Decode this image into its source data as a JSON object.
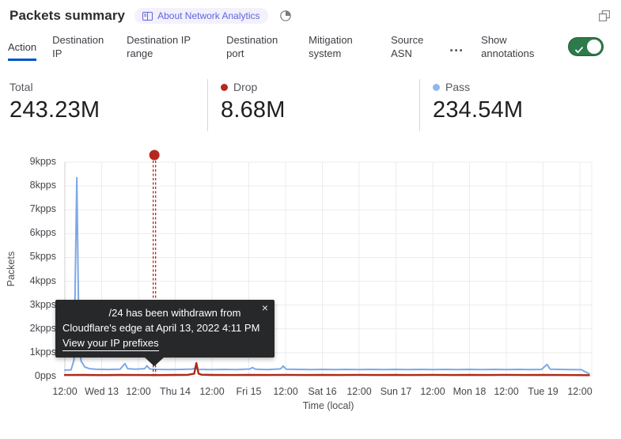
{
  "header": {
    "title": "Packets summary",
    "badge_label": "About Network Analytics"
  },
  "tabs": {
    "items": [
      {
        "label": "Action",
        "selected": true
      },
      {
        "label": "Destination IP",
        "selected": false
      },
      {
        "label": "Destination IP range",
        "selected": false
      },
      {
        "label": "Destination port",
        "selected": false
      },
      {
        "label": "Mitigation system",
        "selected": false
      },
      {
        "label": "Source ASN",
        "selected": false
      }
    ],
    "more_label": "...",
    "show_annotations_label": "Show annotations",
    "annotations_toggle_on": true,
    "selected_underline_color": "#0055cc",
    "toggle_color": "#2d7a4b"
  },
  "stats": {
    "items": [
      {
        "label": "Total",
        "value": "243.23M",
        "dot_color": ""
      },
      {
        "label": "Drop",
        "value": "8.68M",
        "dot_color": "#b5281c"
      },
      {
        "label": "Pass",
        "value": "234.54M",
        "dot_color": "#8fb9ed"
      }
    ]
  },
  "tooltip": {
    "line1": "/24 has been withdrawn from",
    "line2": "Cloudflare's edge at April 13, 2022 4:11 PM",
    "link_label": "View your IP prefixes",
    "close_label": "×"
  },
  "chart_data": {
    "type": "line",
    "title": "",
    "xlabel": "Time (local)",
    "ylabel": "Packets",
    "ylim": [
      0,
      9000
    ],
    "y_unit": "pps",
    "grid": true,
    "legend_position": "in-stats-header",
    "xticks": [
      "12:00",
      "Wed 13",
      "12:00",
      "Thu 14",
      "12:00",
      "Fri 15",
      "12:00",
      "Sat 16",
      "12:00",
      "Sun 17",
      "12:00",
      "Mon 18",
      "12:00",
      "Tue 19",
      "12:00"
    ],
    "xtick_interval_hours": 12,
    "yticks": [
      {
        "label": "0pps",
        "value": 0
      },
      {
        "label": "1kpps",
        "value": 1000
      },
      {
        "label": "2kpps",
        "value": 2000
      },
      {
        "label": "3kpps",
        "value": 3000
      },
      {
        "label": "4kpps",
        "value": 4000
      },
      {
        "label": "5kpps",
        "value": 5000
      },
      {
        "label": "6kpps",
        "value": 6000
      },
      {
        "label": "7kpps",
        "value": 7000
      },
      {
        "label": "8kpps",
        "value": 8000
      },
      {
        "label": "9kpps",
        "value": 9000
      }
    ],
    "series": [
      {
        "name": "Pass",
        "color": "#7fa8e4",
        "points": [
          [
            0,
            270
          ],
          [
            2,
            278
          ],
          [
            3,
            700
          ],
          [
            3.9,
            8350
          ],
          [
            4.6,
            1600
          ],
          [
            5.3,
            650
          ],
          [
            6.5,
            400
          ],
          [
            8,
            330
          ],
          [
            10,
            305
          ],
          [
            14,
            295
          ],
          [
            18,
            305
          ],
          [
            19.6,
            540
          ],
          [
            20.5,
            330
          ],
          [
            23,
            305
          ],
          [
            26,
            330
          ],
          [
            26.8,
            450
          ],
          [
            27.7,
            315
          ],
          [
            30,
            300
          ],
          [
            34,
            292
          ],
          [
            38,
            300
          ],
          [
            41.5,
            312
          ],
          [
            42.5,
            350
          ],
          [
            43.5,
            300
          ],
          [
            47,
            292
          ],
          [
            52,
            300
          ],
          [
            56,
            292
          ],
          [
            60.4,
            315
          ],
          [
            61.2,
            378
          ],
          [
            62.2,
            308
          ],
          [
            66,
            292
          ],
          [
            70.4,
            320
          ],
          [
            71.2,
            440
          ],
          [
            72.2,
            308
          ],
          [
            76,
            298
          ],
          [
            80,
            292
          ],
          [
            84,
            300
          ],
          [
            88,
            292
          ],
          [
            92,
            300
          ],
          [
            96,
            292
          ],
          [
            100,
            300
          ],
          [
            104,
            292
          ],
          [
            108,
            300
          ],
          [
            112,
            292
          ],
          [
            116,
            300
          ],
          [
            120,
            292
          ],
          [
            124,
            300
          ],
          [
            128,
            292
          ],
          [
            132,
            300
          ],
          [
            136,
            292
          ],
          [
            140,
            300
          ],
          [
            144,
            292
          ],
          [
            148,
            300
          ],
          [
            152,
            292
          ],
          [
            155.5,
            300
          ],
          [
            157.3,
            505
          ],
          [
            158.3,
            310
          ],
          [
            161,
            300
          ],
          [
            165,
            292
          ],
          [
            168.5,
            285
          ],
          [
            171,
            115
          ]
        ]
      },
      {
        "name": "Drop",
        "color": "#ad2a1a",
        "points": [
          [
            0,
            62
          ],
          [
            6,
            66
          ],
          [
            12,
            60
          ],
          [
            18,
            66
          ],
          [
            24,
            62
          ],
          [
            30,
            60
          ],
          [
            36,
            66
          ],
          [
            40,
            70
          ],
          [
            42.2,
            120
          ],
          [
            42.9,
            565
          ],
          [
            43.6,
            120
          ],
          [
            44.6,
            78
          ],
          [
            48,
            66
          ],
          [
            54,
            62
          ],
          [
            60,
            66
          ],
          [
            66,
            62
          ],
          [
            72,
            70
          ],
          [
            78,
            62
          ],
          [
            84,
            66
          ],
          [
            90,
            62
          ],
          [
            96,
            70
          ],
          [
            102,
            62
          ],
          [
            108,
            66
          ],
          [
            114,
            62
          ],
          [
            120,
            70
          ],
          [
            126,
            62
          ],
          [
            132,
            66
          ],
          [
            138,
            62
          ],
          [
            144,
            70
          ],
          [
            150,
            62
          ],
          [
            156,
            66
          ],
          [
            162,
            62
          ],
          [
            168,
            60
          ],
          [
            171,
            56
          ]
        ]
      }
    ],
    "annotation": {
      "x_hours": 29.2,
      "date_label": "April 13, 2022 4:11 PM",
      "color": "#b5281c",
      "style": "double-dashed-vertical-line-with-dot"
    }
  }
}
